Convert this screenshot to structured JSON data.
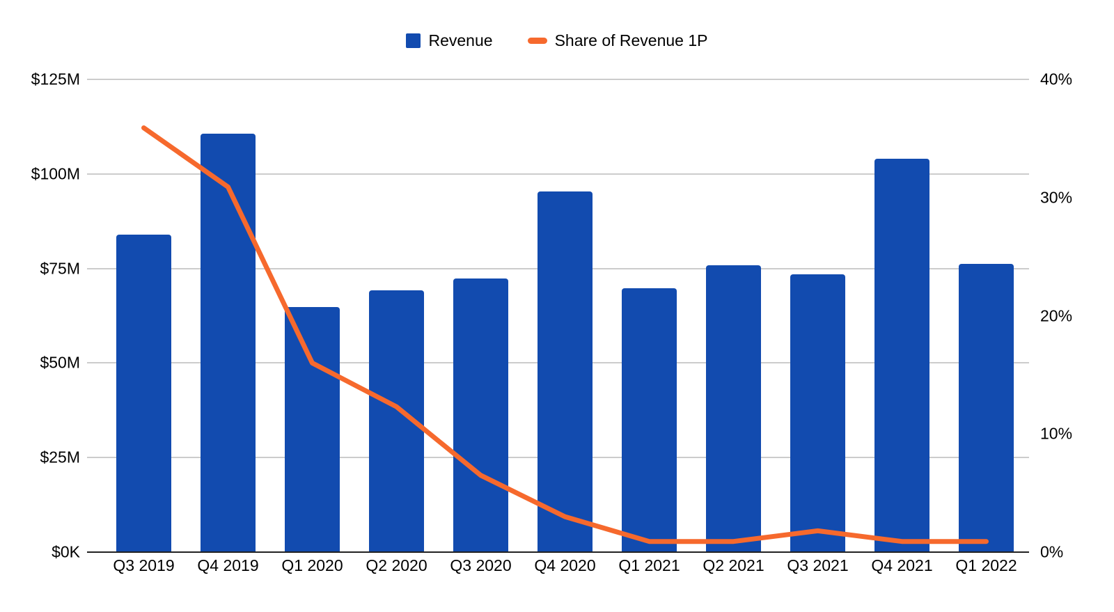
{
  "chart_data": {
    "type": "combo",
    "title": "",
    "categories": [
      "Q3 2019",
      "Q4 2019",
      "Q1 2020",
      "Q2 2020",
      "Q3 2020",
      "Q4 2020",
      "Q1 2021",
      "Q2 2021",
      "Q3 2021",
      "Q4 2021",
      "Q1 2022"
    ],
    "series": [
      {
        "name": "Revenue",
        "type": "bar",
        "axis": "left",
        "unit": "USD millions",
        "color": "#124BAF",
        "values": [
          84,
          110.6,
          64.8,
          69.2,
          72.4,
          95.4,
          69.7,
          75.8,
          73.5,
          104.1,
          76.3
        ]
      },
      {
        "name": "Share of Revenue 1P",
        "type": "line",
        "axis": "right",
        "unit": "percent",
        "color": "#F6692D",
        "values": [
          35.9,
          30.9,
          16.0,
          12.3,
          6.5,
          3.0,
          0.9,
          0.9,
          1.8,
          0.9,
          0.9
        ]
      }
    ],
    "left_axis": {
      "min": 0,
      "max": 125,
      "ticks": [
        "$125M",
        "$100M",
        "$75M",
        "$50M",
        "$25M",
        "$0K"
      ]
    },
    "right_axis": {
      "min": 0,
      "max": 40,
      "ticks": [
        "40%",
        "30%",
        "20%",
        "10%",
        "0%"
      ]
    },
    "grid": true,
    "legend_position": "top"
  },
  "legend": {
    "items": [
      {
        "label": "Revenue",
        "swatch": "square"
      },
      {
        "label": "Share of Revenue 1P",
        "swatch": "dash"
      }
    ]
  },
  "colors": {
    "background": "#FFFFFF",
    "bar": "#124BAF",
    "line": "#F6692D",
    "gridline": "#CCCCCC",
    "axis_line": "#212121",
    "text": "#000000"
  }
}
